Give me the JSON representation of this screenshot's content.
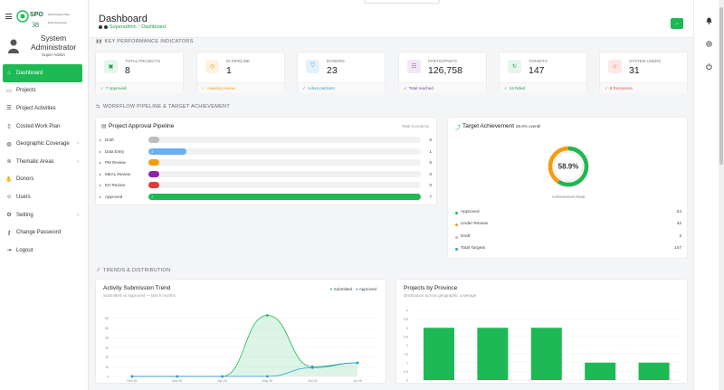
{
  "sidebar": {
    "logo": {
      "abbr": "SPO",
      "line1": "Sindh Progress Office",
      "number": "38",
      "line2": "Sindh Government"
    },
    "user_name": "System Administrator",
    "user_role": "Super Admin",
    "items": [
      {
        "label": "Dashboard",
        "icon": "home-icon",
        "active": true,
        "chevron": false
      },
      {
        "label": "Projects",
        "icon": "folder-icon",
        "active": false,
        "chevron": false
      },
      {
        "label": "Project Activities",
        "icon": "tasks-icon",
        "active": false,
        "chevron": false
      },
      {
        "label": "Costed Work Plan",
        "icon": "document-icon",
        "active": false,
        "chevron": false
      },
      {
        "label": "Geographic Coverage",
        "icon": "map-icon",
        "active": false,
        "chevron": true
      },
      {
        "label": "Thematic Areas",
        "icon": "layers-icon",
        "active": false,
        "chevron": true
      },
      {
        "label": "Donors",
        "icon": "hand-icon",
        "active": false,
        "chevron": false
      },
      {
        "label": "Users",
        "icon": "users-icon",
        "active": false,
        "chevron": false
      },
      {
        "label": "Setting",
        "icon": "gear-icon",
        "active": false,
        "chevron": true
      },
      {
        "label": "Change Password",
        "icon": "key-icon",
        "active": false,
        "chevron": false
      },
      {
        "label": "Logout",
        "icon": "logout-icon",
        "active": false,
        "chevron": false
      }
    ]
  },
  "header": {
    "title": "Dashboard",
    "breadcrumb": [
      "Superadmin",
      "Dashboard"
    ],
    "action_icon": "arrow-right-icon"
  },
  "sections": {
    "kpi": "KEY PERFORMANCE INDICATORS",
    "workflow": "WORKFLOW PIPELINE & TARGET ACHIEVEMENT",
    "trends": "TRENDS & DISTRIBUTION"
  },
  "kpis": [
    {
      "label": "TOTAL PROJECTS",
      "value": "8",
      "foot": "7 Approved",
      "icon": "clipboard-icon",
      "color": "#22a04b",
      "bg": "#e6f6ec",
      "foot_color": "#22a04b"
    },
    {
      "label": "IN PIPELINE",
      "value": "1",
      "foot": "Awaiting review",
      "icon": "clock-icon",
      "color": "#f39c12",
      "bg": "#fef3e0",
      "foot_color": "#f39c12"
    },
    {
      "label": "DONORS",
      "value": "23",
      "foot": "Active partners",
      "icon": "shield-icon",
      "color": "#3498db",
      "bg": "#e4f1fb",
      "foot_color": "#3498db"
    },
    {
      "label": "PARTICIPANTS",
      "value": "126,758",
      "foot": "Total reached",
      "icon": "people-icon",
      "color": "#7d3c98",
      "bg": "#f1e7f6",
      "foot_color": "#7d3c98"
    },
    {
      "label": "TARGETS",
      "value": "147",
      "foot": "24 hit/ed",
      "icon": "refresh-icon",
      "color": "#22a04b",
      "bg": "#e6f6ec",
      "foot_color": "#22a04b"
    },
    {
      "label": "SYSTEM USERS",
      "value": "31",
      "foot": "8 Resources",
      "icon": "users-icon",
      "color": "#e74c3c",
      "bg": "#fde8e6",
      "foot_color": "#e74c3c"
    }
  ],
  "pipeline": {
    "title": "Project Approval Pipeline",
    "subtitle": "Total 8 projects",
    "rows": [
      {
        "label": "Draft",
        "value": 0,
        "color": "#bdbdbd",
        "fraction": 0.04,
        "bar_label": ""
      },
      {
        "label": "Data Entry",
        "value": 1,
        "color": "#6ab0f0",
        "fraction": 0.14,
        "bar_label": "1"
      },
      {
        "label": "PM Review",
        "value": 0,
        "color": "#f39c12",
        "fraction": 0.04,
        "bar_label": ""
      },
      {
        "label": "MEAL Review",
        "value": 0,
        "color": "#8e24aa",
        "fraction": 0.04,
        "bar_label": ""
      },
      {
        "label": "EH Review",
        "value": 0,
        "color": "#e53935",
        "fraction": 0.04,
        "bar_label": ""
      },
      {
        "label": "Approved",
        "value": 7,
        "color": "#1db954",
        "fraction": 1.0,
        "bar_label": "7"
      }
    ]
  },
  "target": {
    "title": "Target Achievement",
    "subtitle": "58.9% overall",
    "percent": 58.9,
    "percent_label": "58.9%",
    "caption": "Achievement Rate",
    "rows": [
      {
        "label": "Approved",
        "value": "24",
        "color": "#1db954"
      },
      {
        "label": "Under Review",
        "value": "42",
        "color": "#f39c12"
      },
      {
        "label": "Draft",
        "value": "3",
        "color": "#bdbdbd"
      },
      {
        "label": "Total Targets",
        "value": "147",
        "color": "#3498db"
      }
    ]
  },
  "chart_data": [
    {
      "type": "line",
      "title": "Activity Submission Trend",
      "subtitle": "Submitted vs Approved — last 6 months",
      "categories": [
        "Feb 26",
        "Mar 26",
        "Apr 26",
        "May 26",
        "Jun 26",
        "Jul 26"
      ],
      "ylim": [
        0,
        70
      ],
      "yticks": [
        0,
        10,
        20,
        30,
        40,
        50,
        60
      ],
      "series": [
        {
          "name": "Submitted",
          "color": "#1db954",
          "values": [
            0,
            0,
            0,
            63,
            10,
            14
          ]
        },
        {
          "name": "Approved",
          "color": "#3498db",
          "values": [
            0,
            0,
            0,
            0,
            9,
            14
          ]
        }
      ]
    },
    {
      "type": "bar",
      "title": "Projects by Province",
      "subtitle": "Distribution across geographic coverage",
      "ylim": [
        0,
        4
      ],
      "yticks": [
        0,
        0.5,
        1,
        1.5,
        2,
        2.5,
        3,
        3.5,
        4
      ],
      "ytick_labels": [
        "0",
        "0.5",
        "1",
        "1.5",
        "2",
        "2.5",
        "3",
        "3.5",
        "4"
      ],
      "values": [
        3,
        3,
        3,
        1,
        1
      ],
      "color": "#1db954"
    }
  ]
}
